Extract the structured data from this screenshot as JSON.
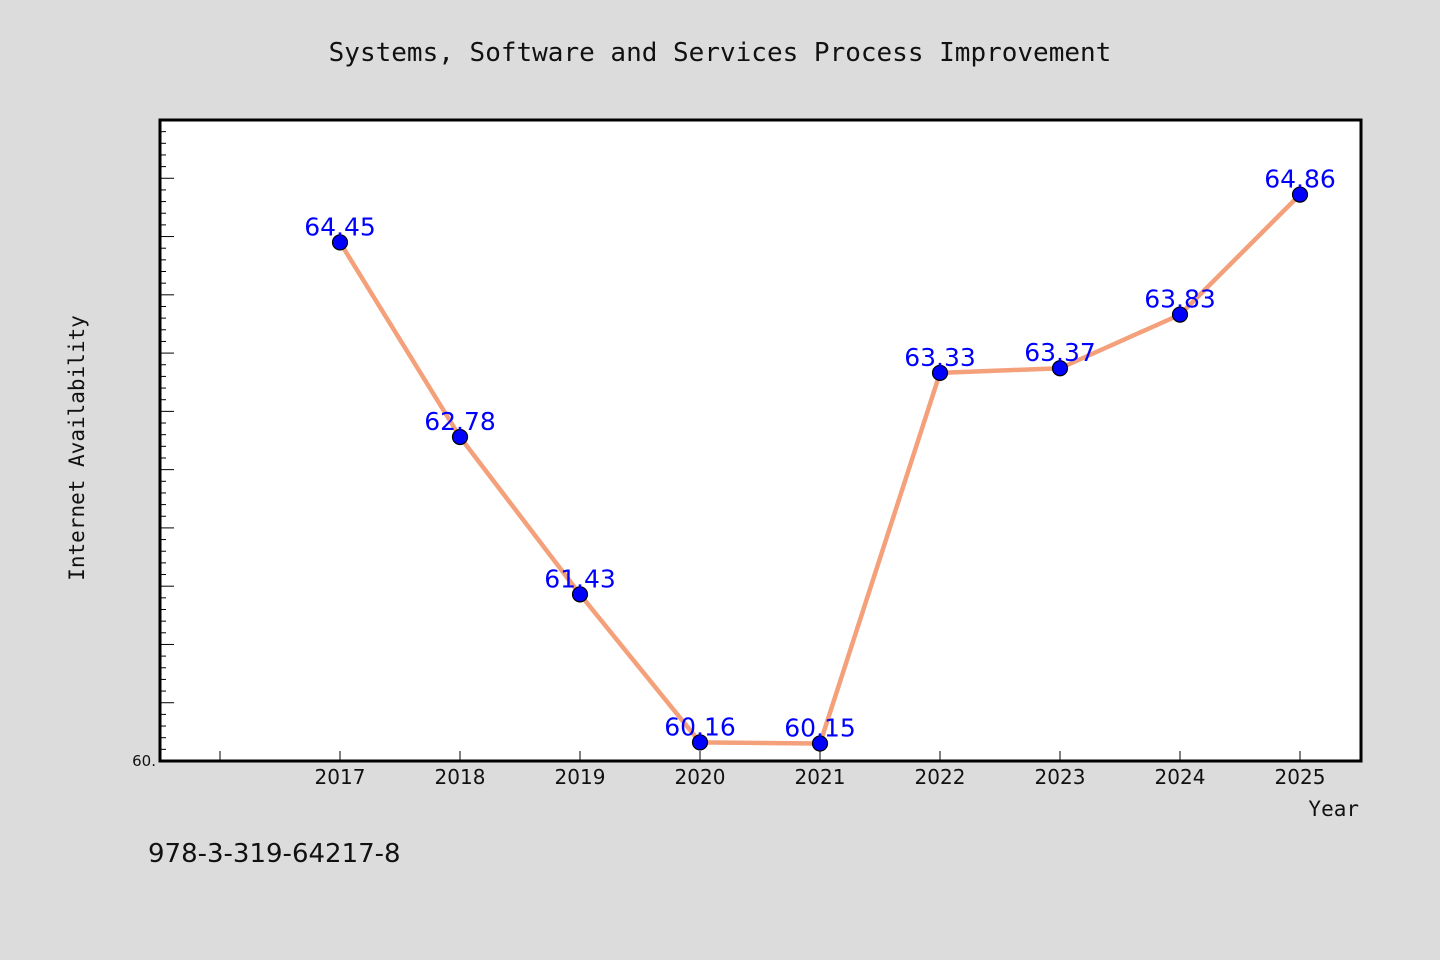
{
  "chart_data": {
    "type": "line",
    "title": "Systems, Software and Services Process Improvement",
    "xlabel": "Year",
    "ylabel": "Internet Availability",
    "categories": [
      "2017",
      "2018",
      "2019",
      "2020",
      "2021",
      "2022",
      "2023",
      "2024",
      "2025"
    ],
    "series": [
      {
        "values": [
          64.45,
          62.78,
          61.43,
          60.16,
          60.15,
          63.33,
          63.37,
          63.83,
          64.86
        ],
        "data_labels": [
          "64.45",
          "62.78",
          "61.43",
          "60.16",
          "60.15",
          "63.33",
          "63.37",
          "63.83",
          "64.86"
        ],
        "line_color": "#f4a07a",
        "marker_color": "#0000ff"
      }
    ],
    "ylim": [
      60.0,
      65.5
    ],
    "ytick_label": "60.",
    "grid": false,
    "label_color": "#0000ff"
  },
  "footer": {
    "isbn": "978-3-319-64217-8"
  }
}
